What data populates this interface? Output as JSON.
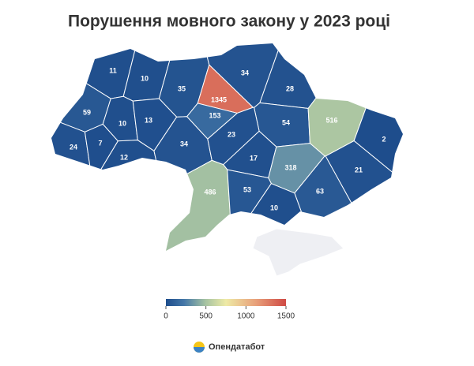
{
  "title": "Порушення мовного закону у 2023 році",
  "regions": [
    11,
    10,
    35,
    1345,
    153,
    34,
    28,
    59,
    10,
    13,
    54,
    516,
    24,
    7,
    12,
    34,
    23,
    2,
    17,
    318,
    21,
    486,
    53,
    63,
    10
  ],
  "colorbar": {
    "range": [
      0,
      1500
    ],
    "ticks": [
      0,
      500,
      1000,
      1500
    ]
  },
  "brand": "Опендатабот"
}
